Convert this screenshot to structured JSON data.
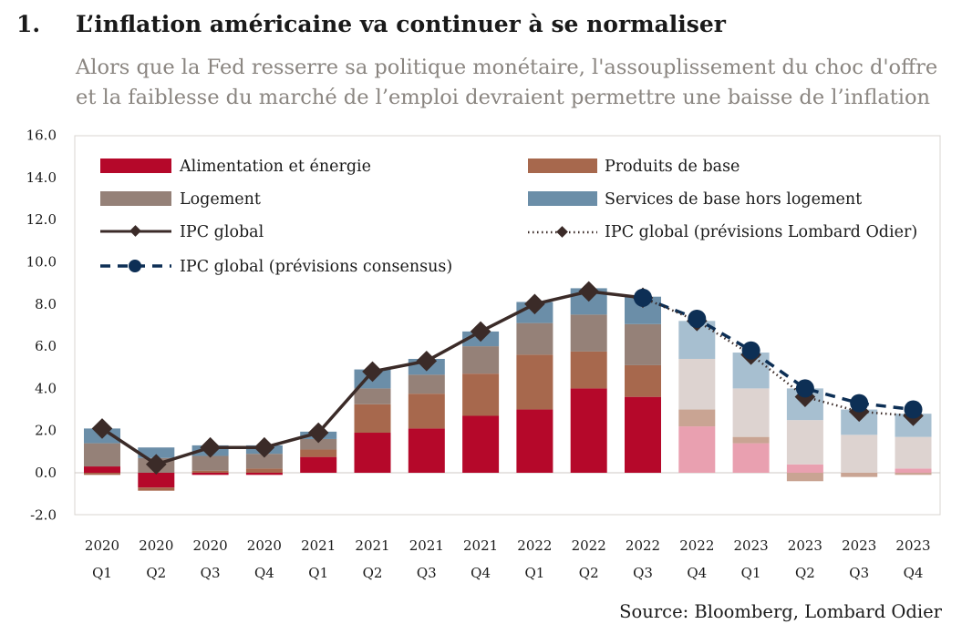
{
  "header": {
    "number": "1.",
    "title": "L’inflation américaine va continuer à se normaliser",
    "subtitle": "Alors que la Fed resserre sa politique monétaire, l'assouplissement du choc d'offre et la faiblesse du marché de l’emploi devraient permettre une baisse de l’inflation"
  },
  "source": "Source: Bloomberg, Lombard Odier",
  "colors": {
    "food_energy": "#b5082a",
    "food_energy_fc": "#e9a0b0",
    "core_goods": "#a7684d",
    "core_goods_fc": "#c9a493",
    "shelter": "#958178",
    "shelter_fc": "#ddd3d0",
    "services": "#6b8ea8",
    "services_fc": "#a7bfd0",
    "cpi_line": "#3b2b28",
    "consensus": "#0d2f55"
  },
  "chart_data": {
    "type": "bar",
    "stacked": true,
    "categories": [
      "2020 Q1",
      "2020 Q2",
      "2020 Q3",
      "2020 Q4",
      "2021 Q1",
      "2021 Q2",
      "2021 Q3",
      "2021 Q4",
      "2022 Q1",
      "2022 Q2",
      "2022 Q3",
      "2022 Q4",
      "2023 Q1",
      "2023 Q2",
      "2023 Q3",
      "2023 Q4"
    ],
    "tick_years": [
      "2020",
      "2020",
      "2020",
      "2020",
      "2021",
      "2021",
      "2021",
      "2021",
      "2022",
      "2022",
      "2022",
      "2022",
      "2023",
      "2023",
      "2023",
      "2023"
    ],
    "tick_quarters": [
      "Q1",
      "Q2",
      "Q3",
      "Q4",
      "Q1",
      "Q2",
      "Q3",
      "Q4",
      "Q1",
      "Q2",
      "Q3",
      "Q4",
      "Q1",
      "Q2",
      "Q3",
      "Q4"
    ],
    "forecast_from_index": 11,
    "ylim": [
      -2,
      16
    ],
    "yticks": [
      "-2.0",
      "0.0",
      "2.0",
      "4.0",
      "6.0",
      "8.0",
      "10.0",
      "12.0",
      "14.0",
      "16.0"
    ],
    "ytick_values": [
      -2,
      0,
      2,
      4,
      6,
      8,
      10,
      12,
      14,
      16
    ],
    "series": [
      {
        "name": "Alimentation et énergie",
        "key": "food_energy",
        "values": [
          0.3,
          -0.7,
          -0.1,
          -0.1,
          0.75,
          1.9,
          2.1,
          2.7,
          3.0,
          4.0,
          3.6,
          2.2,
          1.4,
          0.4,
          0.0,
          0.2
        ]
      },
      {
        "name": "Produits de base",
        "key": "core_goods",
        "values": [
          -0.1,
          -0.15,
          0.1,
          0.2,
          0.35,
          1.35,
          1.65,
          2.0,
          2.6,
          1.75,
          1.5,
          0.8,
          0.3,
          -0.4,
          -0.2,
          -0.1
        ]
      },
      {
        "name": "Logement",
        "key": "shelter",
        "values": [
          1.1,
          0.7,
          0.7,
          0.7,
          0.5,
          0.75,
          0.9,
          1.3,
          1.5,
          1.75,
          1.95,
          2.4,
          2.3,
          2.1,
          1.8,
          1.5
        ]
      },
      {
        "name": "Services de base hors logement",
        "key": "services",
        "values": [
          0.7,
          0.5,
          0.5,
          0.4,
          0.35,
          0.9,
          0.75,
          0.7,
          1.0,
          1.25,
          1.3,
          1.8,
          1.7,
          1.5,
          1.2,
          1.1
        ]
      }
    ],
    "lines": [
      {
        "name": "IPC global",
        "values": [
          2.1,
          0.4,
          1.2,
          1.2,
          1.9,
          4.8,
          5.3,
          6.7,
          8.0,
          8.6,
          8.3,
          null,
          null,
          null,
          null,
          null
        ]
      },
      {
        "name": "IPC global (prévisions Lombard Odier)",
        "values": [
          null,
          null,
          null,
          null,
          null,
          null,
          null,
          null,
          null,
          null,
          8.3,
          7.2,
          5.6,
          3.6,
          2.9,
          2.7
        ]
      },
      {
        "name": "IPC global (prévisions consensus)",
        "values": [
          null,
          null,
          null,
          null,
          null,
          null,
          null,
          null,
          null,
          null,
          8.3,
          7.3,
          5.8,
          4.0,
          3.3,
          3.0
        ]
      }
    ],
    "legend": {
      "food_energy": "Alimentation et énergie",
      "core_goods": "Produits de base",
      "shelter": "Logement",
      "services": "Services de base hors logement",
      "cpi": "IPC global",
      "cpi_lo": "IPC global (prévisions Lombard Odier)",
      "cpi_cons": "IPC global (prévisions consensus)"
    }
  }
}
